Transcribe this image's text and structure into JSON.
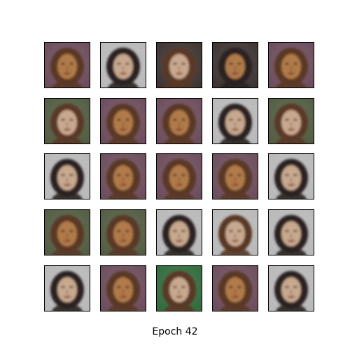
{
  "caption": "Epoch 42",
  "palettes": {
    "purple": "#6b4a5a",
    "grey": "#b8b8b8",
    "dark": "#3b3230",
    "foliage": "#4f5a3f",
    "green": "#2e6a3a",
    "skin_warm": "#b07a4a",
    "skin_pale": "#c8a88e",
    "hair_brown": "#5a3826",
    "hair_dark": "#2a2220"
  },
  "samples": [
    {
      "row": 1,
      "col": 1,
      "background": "purple",
      "skin": "skin_warm",
      "hair": "hair_brown"
    },
    {
      "row": 1,
      "col": 2,
      "background": "grey",
      "skin": "skin_pale",
      "hair": "hair_dark"
    },
    {
      "row": 1,
      "col": 3,
      "background": "dark",
      "skin": "skin_pale",
      "hair": "hair_brown"
    },
    {
      "row": 1,
      "col": 4,
      "background": "dark",
      "skin": "skin_warm",
      "hair": "hair_dark"
    },
    {
      "row": 1,
      "col": 5,
      "background": "purple",
      "skin": "skin_warm",
      "hair": "hair_brown"
    },
    {
      "row": 2,
      "col": 1,
      "background": "foliage",
      "skin": "skin_pale",
      "hair": "hair_brown"
    },
    {
      "row": 2,
      "col": 2,
      "background": "purple",
      "skin": "skin_warm",
      "hair": "hair_brown"
    },
    {
      "row": 2,
      "col": 3,
      "background": "purple",
      "skin": "skin_warm",
      "hair": "hair_brown"
    },
    {
      "row": 2,
      "col": 4,
      "background": "grey",
      "skin": "skin_pale",
      "hair": "hair_dark"
    },
    {
      "row": 2,
      "col": 5,
      "background": "foliage",
      "skin": "skin_pale",
      "hair": "hair_brown"
    },
    {
      "row": 3,
      "col": 1,
      "background": "grey",
      "skin": "skin_pale",
      "hair": "hair_dark"
    },
    {
      "row": 3,
      "col": 2,
      "background": "purple",
      "skin": "skin_warm",
      "hair": "hair_brown"
    },
    {
      "row": 3,
      "col": 3,
      "background": "purple",
      "skin": "skin_warm",
      "hair": "hair_brown"
    },
    {
      "row": 3,
      "col": 4,
      "background": "purple",
      "skin": "skin_warm",
      "hair": "hair_brown"
    },
    {
      "row": 3,
      "col": 5,
      "background": "grey",
      "skin": "skin_pale",
      "hair": "hair_dark"
    },
    {
      "row": 4,
      "col": 1,
      "background": "foliage",
      "skin": "skin_warm",
      "hair": "hair_brown"
    },
    {
      "row": 4,
      "col": 2,
      "background": "foliage",
      "skin": "skin_warm",
      "hair": "hair_brown"
    },
    {
      "row": 4,
      "col": 3,
      "background": "grey",
      "skin": "skin_pale",
      "hair": "hair_dark"
    },
    {
      "row": 4,
      "col": 4,
      "background": "grey",
      "skin": "skin_pale",
      "hair": "hair_brown"
    },
    {
      "row": 4,
      "col": 5,
      "background": "grey",
      "skin": "skin_pale",
      "hair": "hair_dark"
    },
    {
      "row": 5,
      "col": 1,
      "background": "grey",
      "skin": "skin_pale",
      "hair": "hair_dark"
    },
    {
      "row": 5,
      "col": 2,
      "background": "purple",
      "skin": "skin_warm",
      "hair": "hair_brown"
    },
    {
      "row": 5,
      "col": 3,
      "background": "green",
      "skin": "skin_pale",
      "hair": "hair_brown"
    },
    {
      "row": 5,
      "col": 4,
      "background": "purple",
      "skin": "skin_warm",
      "hair": "hair_brown"
    },
    {
      "row": 5,
      "col": 5,
      "background": "grey",
      "skin": "skin_pale",
      "hair": "hair_dark"
    }
  ]
}
